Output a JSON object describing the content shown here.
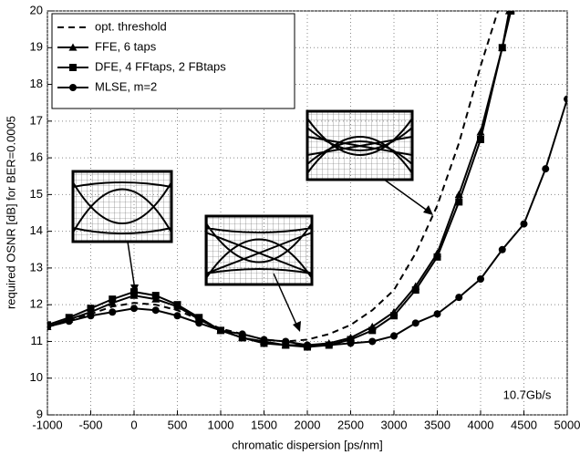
{
  "chart_data": {
    "type": "line",
    "xlabel": "chromatic dispersion [ps/nm]",
    "ylabel": "required OSNR [dB] for BER=0.0005",
    "annotation": "10.7Gb/s",
    "xlim": [
      -1000,
      5000
    ],
    "xticks": [
      -1000,
      -500,
      0,
      500,
      1000,
      1500,
      2000,
      2500,
      3000,
      3500,
      4000,
      4500,
      5000
    ],
    "ylim": [
      9,
      20
    ],
    "yticks": [
      9,
      10,
      11,
      12,
      13,
      14,
      15,
      16,
      17,
      18,
      19,
      20
    ],
    "grid": true,
    "legend": "upper left",
    "series": [
      {
        "name": "opt. threshold",
        "color": "#000000",
        "dashed": true,
        "marker": "none",
        "x": [
          -1000,
          -750,
          -500,
          -250,
          0,
          250,
          500,
          750,
          1000,
          1250,
          1500,
          1750,
          2000,
          2250,
          2500,
          2750,
          3000,
          3250,
          3500,
          3750,
          4000,
          4200
        ],
        "values": [
          11.4,
          11.55,
          11.75,
          11.95,
          12.05,
          12.0,
          11.85,
          11.6,
          11.35,
          11.2,
          11.05,
          11.0,
          11.05,
          11.2,
          11.45,
          11.85,
          12.4,
          13.4,
          14.7,
          16.4,
          18.5,
          20
        ]
      },
      {
        "name": "FFE, 6 taps",
        "color": "#000000",
        "dashed": false,
        "marker": "triangle",
        "x": [
          -1000,
          -750,
          -500,
          -250,
          0,
          250,
          500,
          750,
          1000,
          1250,
          1500,
          1750,
          2000,
          2250,
          2500,
          2750,
          3000,
          3250,
          3500,
          3750,
          4000,
          4250,
          4330
        ],
        "values": [
          11.4,
          11.6,
          11.8,
          12.05,
          12.25,
          12.15,
          11.95,
          11.6,
          11.3,
          11.1,
          11.0,
          10.9,
          10.9,
          10.95,
          11.1,
          11.4,
          11.8,
          12.5,
          13.4,
          15.0,
          16.7,
          19.0,
          20
        ]
      },
      {
        "name": "DFE, 4 FFtaps, 2 FBtaps",
        "color": "#000000",
        "dashed": false,
        "marker": "square",
        "x": [
          -1000,
          -750,
          -500,
          -250,
          0,
          250,
          500,
          750,
          1000,
          1250,
          1500,
          1750,
          2000,
          2250,
          2500,
          2750,
          3000,
          3250,
          3500,
          3750,
          4000,
          4250,
          4350
        ],
        "values": [
          11.45,
          11.65,
          11.9,
          12.15,
          12.35,
          12.25,
          12.0,
          11.65,
          11.3,
          11.1,
          10.95,
          10.9,
          10.85,
          10.9,
          11.05,
          11.3,
          11.7,
          12.4,
          13.3,
          14.8,
          16.5,
          19.0,
          20
        ]
      },
      {
        "name": "MLSE, m=2",
        "color": "#000000",
        "dashed": false,
        "marker": "circle",
        "x": [
          -1000,
          -750,
          -500,
          -250,
          0,
          250,
          500,
          750,
          1000,
          1250,
          1500,
          1750,
          2000,
          2250,
          2500,
          2750,
          3000,
          3250,
          3500,
          3750,
          4000,
          4250,
          4500,
          4750,
          5000
        ],
        "values": [
          11.4,
          11.55,
          11.7,
          11.8,
          11.9,
          11.85,
          11.7,
          11.5,
          11.3,
          11.2,
          11.05,
          11.0,
          10.9,
          10.9,
          10.95,
          11.0,
          11.15,
          11.5,
          11.75,
          12.2,
          12.7,
          13.5,
          14.2,
          15.7,
          17.6
        ]
      }
    ]
  }
}
